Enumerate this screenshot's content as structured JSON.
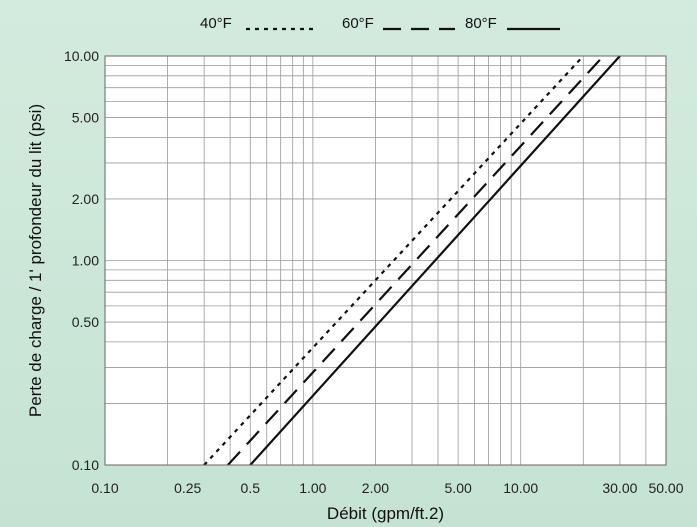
{
  "chart_data": {
    "type": "line",
    "xscale": "log",
    "yscale": "log",
    "xlim": [
      0.1,
      50
    ],
    "ylim": [
      0.1,
      10
    ],
    "xticks": [
      0.1,
      0.25,
      0.5,
      1,
      2,
      5,
      10,
      30,
      50
    ],
    "xtick_labels": [
      "0.10",
      "0.25",
      "0.5",
      "1.00",
      "2.00",
      "5.00",
      "10.00",
      "30.00",
      "50.00"
    ],
    "yticks": [
      0.1,
      0.5,
      1,
      2,
      5,
      10
    ],
    "ytick_labels": [
      "0.10",
      "0.50",
      "1.00",
      "2.00",
      "5.00",
      "10.00"
    ],
    "xlabel": "Débit (gpm/ft.2)",
    "ylabel": "Perte de charge / 1' profondeur du lit (psi)",
    "grid": true,
    "legend_position": "top",
    "series": [
      {
        "name": "40°F",
        "style": "dotted",
        "color": "#111111",
        "x": [
          0.3,
          20
        ],
        "y": [
          0.1,
          10
        ]
      },
      {
        "name": "60°F",
        "style": "dashed",
        "color": "#111111",
        "x": [
          0.39,
          25
        ],
        "y": [
          0.1,
          10
        ]
      },
      {
        "name": "80°F",
        "style": "solid",
        "color": "#111111",
        "x": [
          0.5,
          30
        ],
        "y": [
          0.1,
          10
        ]
      }
    ]
  }
}
